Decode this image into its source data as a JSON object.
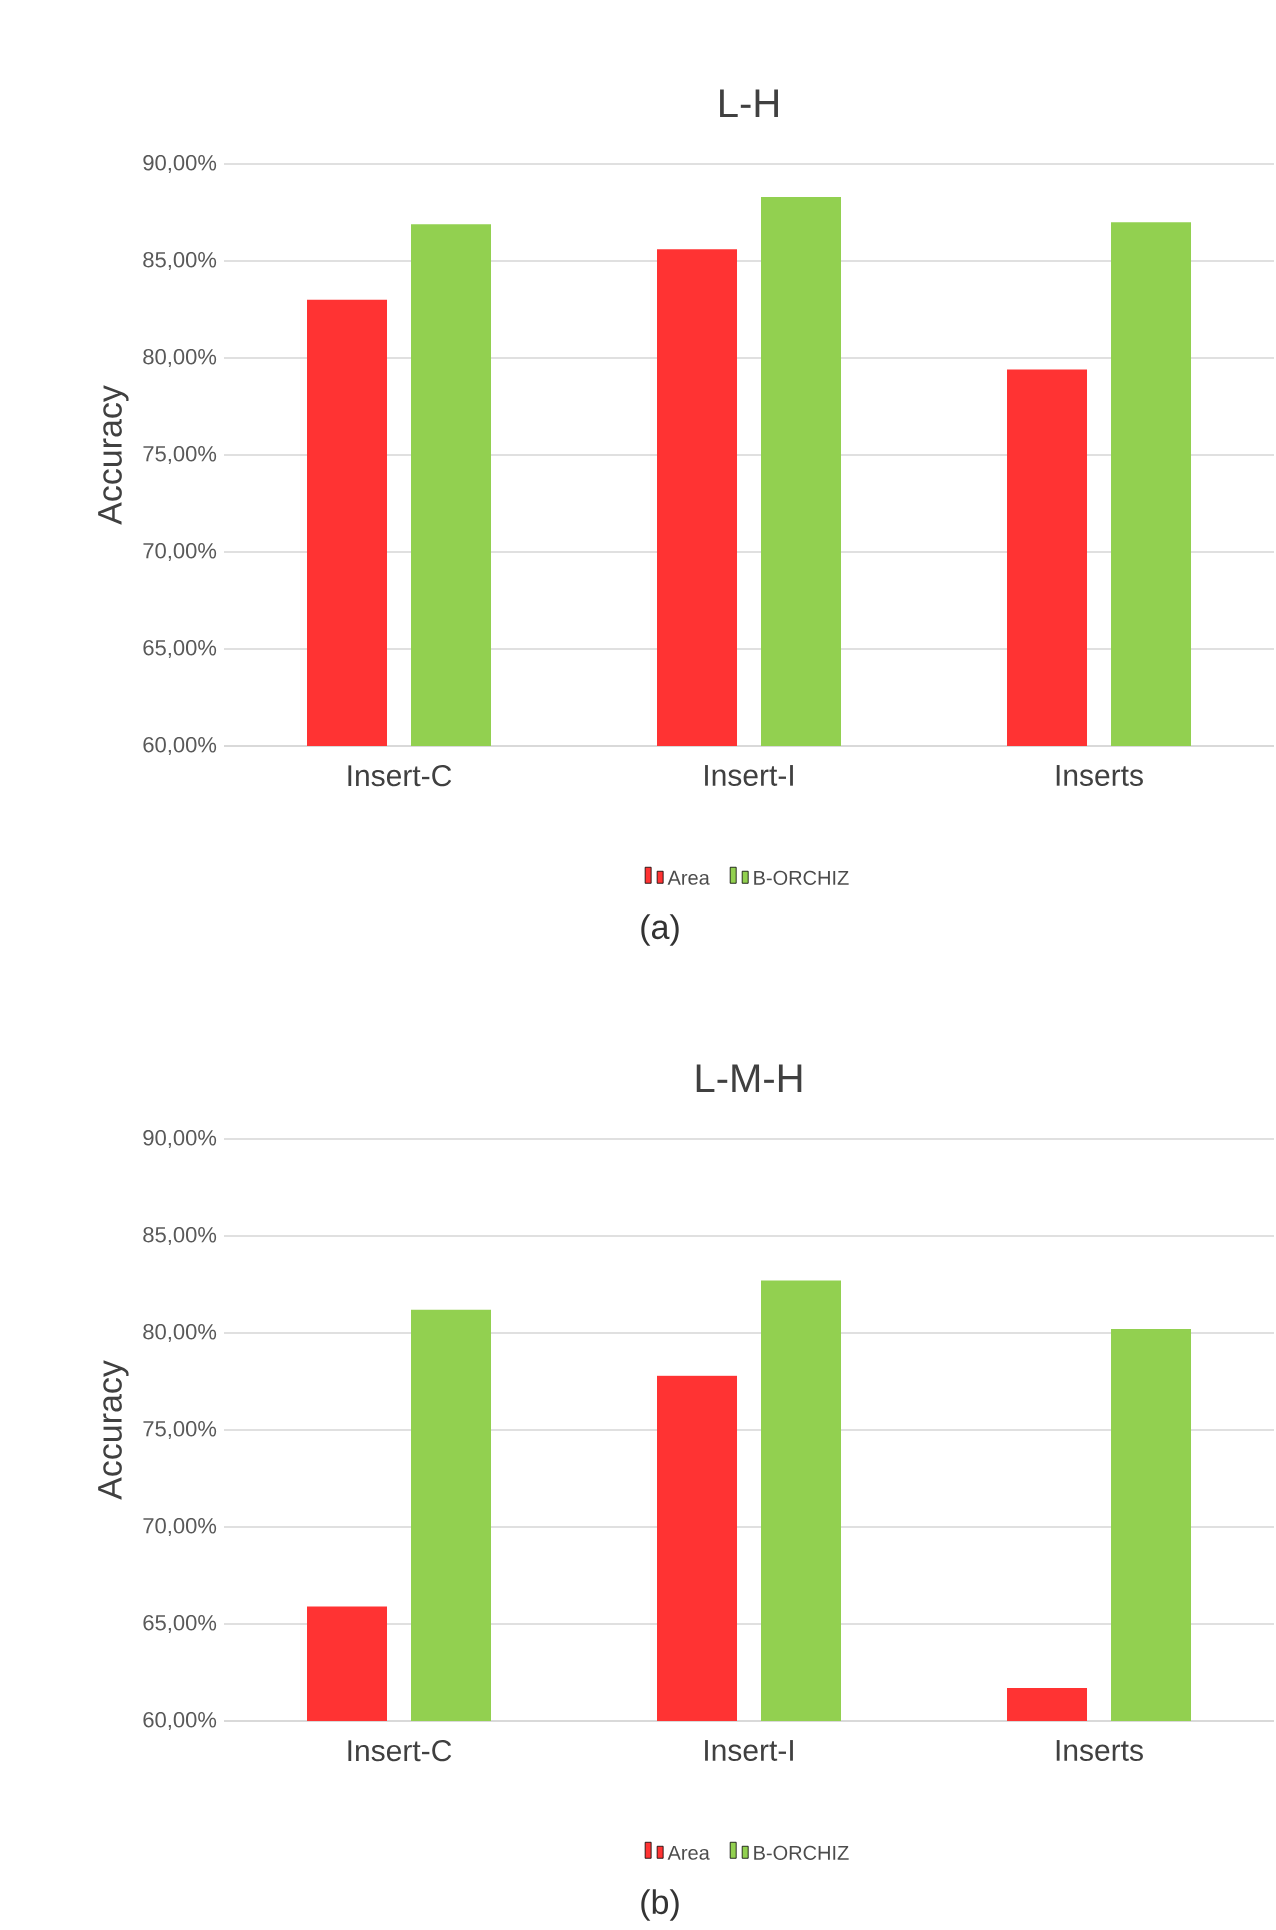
{
  "chart_data": [
    {
      "type": "bar",
      "title": "L-H",
      "ylabel": "Accuracy",
      "categories": [
        "Insert-C",
        "Insert-I",
        "Inserts"
      ],
      "series": [
        {
          "name": "Area",
          "color": "#ff3333",
          "values": [
            83.0,
            85.6,
            79.4
          ]
        },
        {
          "name": "B-ORCHIZ",
          "color": "#92d050",
          "values": [
            86.9,
            88.3,
            87.0
          ]
        }
      ],
      "ylim": [
        60,
        90
      ],
      "yticks": [
        {
          "value": 60,
          "label": "60,00%"
        },
        {
          "value": 65,
          "label": "65,00%"
        },
        {
          "value": 70,
          "label": "70,00%"
        },
        {
          "value": 75,
          "label": "75,00%"
        },
        {
          "value": 80,
          "label": "80,00%"
        },
        {
          "value": 85,
          "label": "85,00%"
        },
        {
          "value": 90,
          "label": "90,00%"
        }
      ],
      "grid": "y",
      "legend": "bottom",
      "annotations": [
        "(a)"
      ]
    },
    {
      "type": "bar",
      "title": "L-M-H",
      "ylabel": "Accuracy",
      "categories": [
        "Insert-C",
        "Insert-I",
        "Inserts"
      ],
      "series": [
        {
          "name": "Area",
          "color": "#ff3333",
          "values": [
            65.9,
            77.8,
            61.7
          ]
        },
        {
          "name": "B-ORCHIZ",
          "color": "#92d050",
          "values": [
            81.2,
            82.7,
            80.2
          ]
        }
      ],
      "ylim": [
        60,
        90
      ],
      "yticks": [
        {
          "value": 60,
          "label": "60,00%"
        },
        {
          "value": 65,
          "label": "65,00%"
        },
        {
          "value": 70,
          "label": "70,00%"
        },
        {
          "value": 75,
          "label": "75,00%"
        },
        {
          "value": 80,
          "label": "80,00%"
        },
        {
          "value": 85,
          "label": "85,00%"
        },
        {
          "value": 90,
          "label": "90,00%"
        }
      ],
      "grid": "y",
      "legend": "bottom",
      "annotations": [
        "(b)"
      ]
    }
  ]
}
